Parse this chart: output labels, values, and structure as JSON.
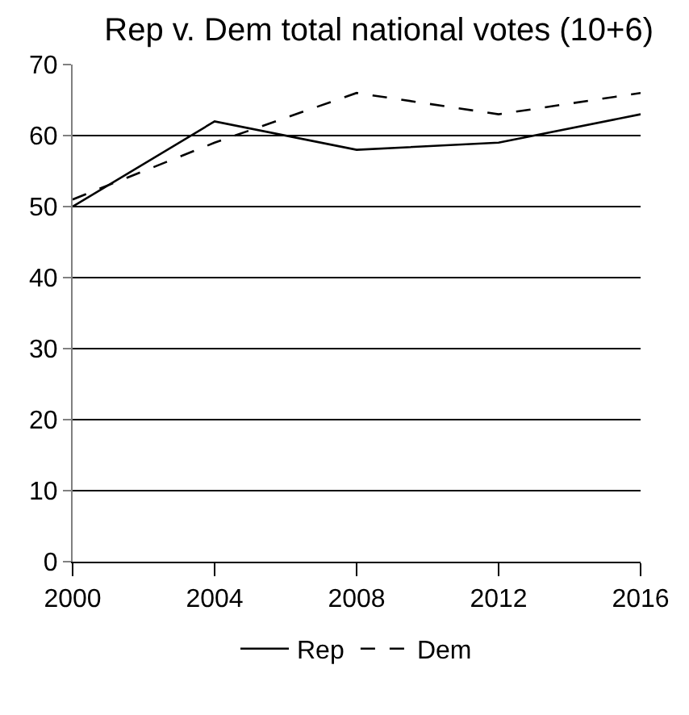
{
  "chart_data": {
    "type": "line",
    "title": "Rep v. Dem total national votes (10+6)",
    "x": [
      2000,
      2004,
      2008,
      2012,
      2016
    ],
    "series": [
      {
        "name": "Rep",
        "color": "#000000",
        "line_style": "solid",
        "values": [
          50,
          62,
          58,
          59,
          63
        ]
      },
      {
        "name": "Dem",
        "color": "#000000",
        "line_style": "dashed",
        "values": [
          51,
          59,
          66,
          63,
          66
        ]
      }
    ],
    "xlim": [
      2000,
      2016
    ],
    "xticks": [
      2000,
      2004,
      2008,
      2012,
      2016
    ],
    "ylim": [
      0,
      70
    ],
    "yticks": [
      0,
      10,
      20,
      30,
      40,
      50,
      60,
      70
    ],
    "grid": "y",
    "legend": "bottom",
    "marker": "none"
  }
}
